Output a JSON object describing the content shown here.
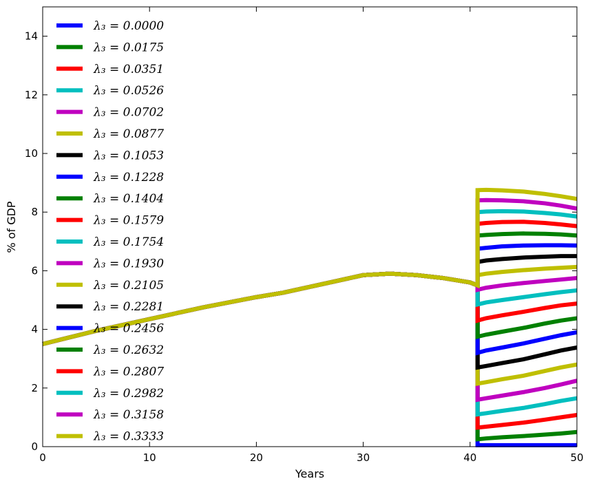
{
  "chart_data": {
    "type": "line",
    "title": "",
    "xlabel": "Years",
    "ylabel": "% of GDP",
    "xlim": [
      0,
      50
    ],
    "ylim": [
      0,
      15
    ],
    "xticks": [
      0,
      10,
      20,
      30,
      40,
      50
    ],
    "yticks": [
      0,
      2,
      4,
      6,
      8,
      10,
      12,
      14
    ],
    "grid": false,
    "legend_position": "top-left",
    "colors": [
      "#0000ff",
      "#008000",
      "#ff0000",
      "#00bfbf",
      "#bf00bf",
      "#bfbf00",
      "#000000"
    ],
    "shared_x": [
      0,
      5,
      10,
      15,
      20,
      22.5,
      25,
      27.5,
      30,
      32.5,
      35,
      37.5,
      40,
      40.7
    ],
    "shared_values": [
      3.5,
      3.95,
      4.35,
      4.75,
      5.1,
      5.25,
      5.45,
      5.65,
      5.85,
      5.9,
      5.85,
      5.75,
      5.6,
      5.5
    ],
    "break_x": 40.7,
    "post_x": [
      40.7,
      41.5,
      43,
      45,
      47,
      48.5,
      50
    ],
    "series": [
      {
        "name": "λ₃ = 0.0000",
        "lambda_label": "\\lambda_3 = 0.0000",
        "post_values": [
          0.05,
          0.05,
          0.05,
          0.05,
          0.05,
          0.05,
          0.05
        ]
      },
      {
        "name": "λ₃ = 0.0175",
        "lambda_label": "\\lambda_3 = 0.0175",
        "post_values": [
          0.25,
          0.28,
          0.32,
          0.36,
          0.41,
          0.45,
          0.5
        ]
      },
      {
        "name": "λ₃ = 0.0351",
        "lambda_label": "\\lambda_3 = 0.0351",
        "post_values": [
          0.65,
          0.68,
          0.74,
          0.82,
          0.92,
          1.0,
          1.08
        ]
      },
      {
        "name": "λ₃ = 0.0526",
        "lambda_label": "\\lambda_3 = 0.0526",
        "post_values": [
          1.1,
          1.14,
          1.22,
          1.32,
          1.45,
          1.56,
          1.65
        ]
      },
      {
        "name": "λ₃ = 0.0702",
        "lambda_label": "\\lambda_3 = 0.0702",
        "post_values": [
          1.6,
          1.65,
          1.74,
          1.86,
          2.0,
          2.12,
          2.25
        ]
      },
      {
        "name": "λ₃ = 0.0877",
        "lambda_label": "\\lambda_3 = 0.0877",
        "post_values": [
          2.15,
          2.2,
          2.3,
          2.42,
          2.58,
          2.7,
          2.8
        ]
      },
      {
        "name": "λ₃ = 0.1053",
        "lambda_label": "\\lambda_3 = 0.1053",
        "post_values": [
          2.7,
          2.75,
          2.85,
          2.98,
          3.15,
          3.28,
          3.38
        ]
      },
      {
        "name": "λ₃ = 0.1228",
        "lambda_label": "\\lambda_3 = 0.1228",
        "post_values": [
          3.2,
          3.28,
          3.38,
          3.52,
          3.68,
          3.8,
          3.9
        ]
      },
      {
        "name": "λ₃ = 0.1404",
        "lambda_label": "\\lambda_3 = 0.1404",
        "post_values": [
          3.75,
          3.82,
          3.92,
          4.05,
          4.2,
          4.3,
          4.38
        ]
      },
      {
        "name": "λ₃ = 0.1579",
        "lambda_label": "\\lambda_3 = 0.1579",
        "post_values": [
          4.3,
          4.38,
          4.48,
          4.6,
          4.73,
          4.82,
          4.88
        ]
      },
      {
        "name": "λ₃ = 0.1754",
        "lambda_label": "\\lambda_3 = 0.1754",
        "post_values": [
          4.85,
          4.92,
          5.0,
          5.1,
          5.2,
          5.27,
          5.33
        ]
      },
      {
        "name": "λ₃ = 0.1930",
        "lambda_label": "\\lambda_3 = 0.1930",
        "post_values": [
          5.35,
          5.42,
          5.5,
          5.58,
          5.65,
          5.7,
          5.75
        ]
      },
      {
        "name": "λ₃ = 0.2105",
        "lambda_label": "\\lambda_3 = 0.2105",
        "post_values": [
          5.85,
          5.9,
          5.96,
          6.02,
          6.07,
          6.1,
          6.13
        ]
      },
      {
        "name": "λ₃ = 0.2281",
        "lambda_label": "\\lambda_3 = 0.2281",
        "post_values": [
          6.3,
          6.35,
          6.4,
          6.45,
          6.48,
          6.5,
          6.5
        ]
      },
      {
        "name": "λ₃ = 0.2456",
        "lambda_label": "\\lambda_3 = 0.2456",
        "post_values": [
          6.75,
          6.78,
          6.83,
          6.86,
          6.87,
          6.87,
          6.86
        ]
      },
      {
        "name": "λ₃ = 0.2632",
        "lambda_label": "\\lambda_3 = 0.2632",
        "post_values": [
          7.2,
          7.22,
          7.25,
          7.27,
          7.26,
          7.24,
          7.2
        ]
      },
      {
        "name": "λ₃ = 0.2807",
        "lambda_label": "\\lambda_3 = 0.2807",
        "post_values": [
          7.6,
          7.63,
          7.66,
          7.67,
          7.63,
          7.58,
          7.52
        ]
      },
      {
        "name": "λ₃ = 0.2982",
        "lambda_label": "\\lambda_3 = 0.2982",
        "post_values": [
          8.0,
          8.02,
          8.03,
          8.02,
          7.97,
          7.92,
          7.85
        ]
      },
      {
        "name": "λ₃ = 0.3158",
        "lambda_label": "\\lambda_3 = 0.3158",
        "post_values": [
          8.4,
          8.41,
          8.4,
          8.37,
          8.3,
          8.22,
          8.12
        ]
      },
      {
        "name": "λ₃ = 0.3333",
        "lambda_label": "\\lambda_3 = 0.3333",
        "post_values": [
          8.75,
          8.76,
          8.74,
          8.7,
          8.62,
          8.54,
          8.45
        ]
      }
    ]
  }
}
